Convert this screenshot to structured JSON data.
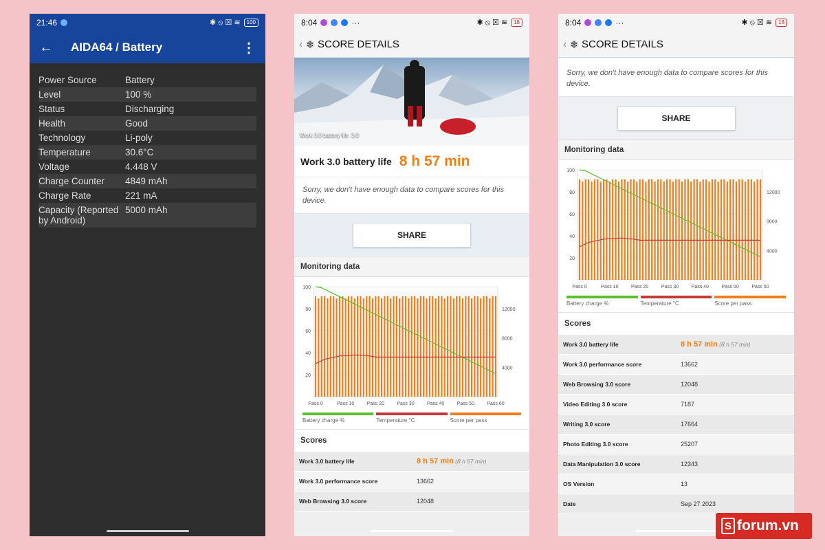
{
  "aida": {
    "status": {
      "time": "21:46",
      "icons": "✱ ⦸ ☒ ≋",
      "battery": "100"
    },
    "title": "AIDA64  /  Battery",
    "rows": [
      {
        "k": "Power Source",
        "v": "Battery"
      },
      {
        "k": "Level",
        "v": "100 %"
      },
      {
        "k": "Status",
        "v": "Discharging"
      },
      {
        "k": "Health",
        "v": "Good"
      },
      {
        "k": "Technology",
        "v": "Li-poly"
      },
      {
        "k": "Temperature",
        "v": "30.6°C"
      },
      {
        "k": "Voltage",
        "v": "4.448 V"
      },
      {
        "k": "Charge Counter",
        "v": "4849 mAh"
      },
      {
        "k": "Charge Rate",
        "v": "221 mA"
      },
      {
        "k": "Capacity (Reported by Android)",
        "v": "5000 mAh"
      }
    ]
  },
  "pcmark": {
    "status": {
      "time": "8:04",
      "more": "···",
      "icons": "✱ ⦸ ☒ ≋",
      "battery": "18"
    },
    "header_title": "SCORE DETAILS",
    "hero_caption": "Work 3.0 battery life",
    "hero_version": "3.0",
    "result_label": "Work 3.0 battery life",
    "result_value": "8 h 57 min",
    "sorry": "Sorry, we don't have enough data to compare scores for this device.",
    "share_label": "SHARE",
    "monitoring_label": "Monitoring data",
    "scores_label": "Scores",
    "legend": [
      {
        "label": "Battery charge %",
        "color": "#5cbf2a"
      },
      {
        "label": "Temperature °C",
        "color": "#c43838"
      },
      {
        "label": "Score per pass",
        "color": "#f07d1a"
      }
    ],
    "scores": [
      {
        "k": "Work 3.0 battery life",
        "v": "8 h 57 min",
        "note": "(8 h 57 min)"
      },
      {
        "k": "Work 3.0 performance score",
        "v": "13662"
      },
      {
        "k": "Web Browsing 3.0 score",
        "v": "12048"
      },
      {
        "k": "Video Editing 3.0 score",
        "v": "7187"
      },
      {
        "k": "Writing 3.0 score",
        "v": "17664"
      },
      {
        "k": "Photo Editing 3.0 score",
        "v": "25207"
      },
      {
        "k": "Data Manipulation 3.0 score",
        "v": "12343"
      },
      {
        "k": "OS Version",
        "v": "13"
      },
      {
        "k": "Date",
        "v": "Sep 27 2023"
      }
    ]
  },
  "brand": {
    "s": "S",
    "text": "forum.vn"
  },
  "chart_data": {
    "type": "bar",
    "x_ticks": [
      "Pass 0",
      "Pass 10",
      "Pass 20",
      "Pass 30",
      "Pass 40",
      "Pass 50",
      "Pass 60"
    ],
    "y_left_ticks": [
      "100",
      "80",
      "60",
      "40",
      "20"
    ],
    "y_right_ticks": [
      "12000",
      "8000",
      "4000"
    ],
    "ylim_left": [
      0,
      100
    ],
    "ylim_right": [
      0,
      15000
    ],
    "passes": 61,
    "score_per_pass_approx": 13700,
    "battery_charge": {
      "x": [
        0,
        2,
        60
      ],
      "y": [
        100,
        99,
        21
      ]
    },
    "temperature": {
      "x": [
        0,
        3,
        8,
        14,
        18,
        20,
        60
      ],
      "y": [
        30,
        34,
        37,
        38,
        37,
        36,
        36
      ]
    }
  }
}
